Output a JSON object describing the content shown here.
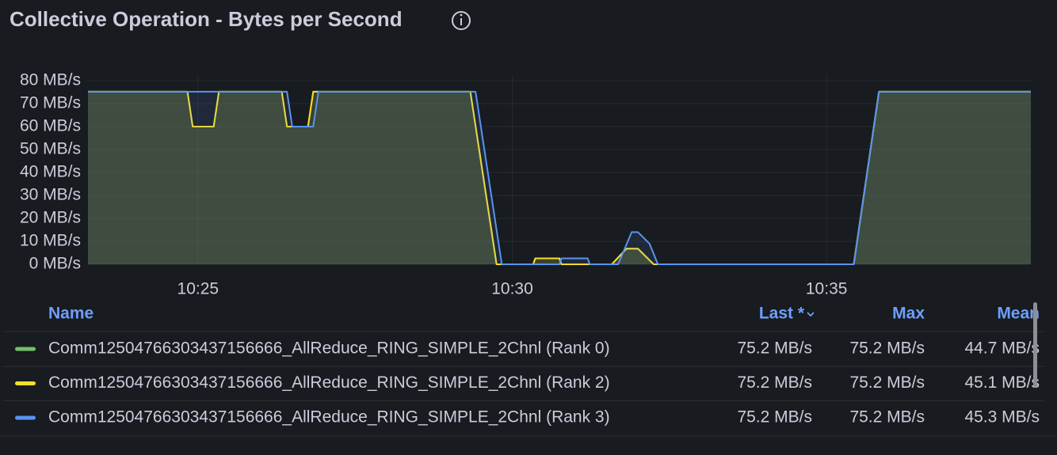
{
  "chart_data": {
    "type": "line",
    "title": "Collective Operation - Bytes per Second",
    "x": [
      "10:23:15",
      "10:24:50",
      "10:24:55",
      "10:25:15",
      "10:25:20",
      "10:26:20",
      "10:26:25",
      "10:26:30",
      "10:26:45",
      "10:26:50",
      "10:26:55",
      "10:29:20",
      "10:29:25",
      "10:29:45",
      "10:29:50",
      "10:30:20",
      "10:30:22",
      "10:30:45",
      "10:30:47",
      "10:31:12",
      "10:31:14",
      "10:31:35",
      "10:31:41",
      "10:31:49",
      "10:31:54",
      "10:32:00",
      "10:32:11",
      "10:32:15",
      "10:32:19",
      "10:35:26",
      "10:35:50",
      "10:38:15"
    ],
    "series": [
      {
        "name": "Comm12504766303437156666_AllReduce_RING_SIMPLE_2Chnl (Rank 0)",
        "color": "#73bf69",
        "values": [
          75.2,
          75.2,
          60,
          60,
          75.2,
          75.2,
          60,
          60,
          60,
          75.2,
          75.2,
          75.2,
          60.2,
          0,
          0,
          0,
          2.6,
          2.6,
          0,
          0,
          0,
          0,
          2.9,
          6.8,
          6.8,
          6.8,
          1.8,
          0,
          0,
          0,
          75.2,
          75.2
        ]
      },
      {
        "name": "Comm12504766303437156666_AllReduce_RING_SIMPLE_2Chnl (Rank 2)",
        "color": "#fade2a",
        "values": [
          75.2,
          75.2,
          60,
          60,
          75.2,
          75.2,
          60,
          60,
          60,
          75.2,
          75.2,
          75.2,
          60.2,
          0,
          0,
          0,
          2.6,
          2.6,
          0,
          0,
          0,
          0,
          2.9,
          6.8,
          6.8,
          6.8,
          1.8,
          0,
          0,
          0,
          75.2,
          75.2
        ]
      },
      {
        "name": "Comm12504766303437156666_AllReduce_RING_SIMPLE_2Chnl (Rank 3)",
        "color": "#5794f2",
        "values": [
          75.2,
          75.2,
          75.2,
          75.2,
          75.2,
          75.2,
          75.2,
          60,
          60,
          60,
          75.2,
          75.2,
          75.2,
          15,
          0,
          0,
          0,
          0,
          2.6,
          2.6,
          0,
          0,
          0,
          8.6,
          14,
          14,
          9,
          4.5,
          0,
          0,
          75.2,
          75.2
        ]
      }
    ],
    "xlim": [
      "10:23:15",
      "10:38:15"
    ],
    "xticks": [
      "10:25",
      "10:30",
      "10:35"
    ],
    "ylim": [
      0,
      80
    ],
    "yticks": [
      {
        "value": 0,
        "label": "0 MB/s"
      },
      {
        "value": 10,
        "label": "10 MB/s"
      },
      {
        "value": 20,
        "label": "20 MB/s"
      },
      {
        "value": 30,
        "label": "30 MB/s"
      },
      {
        "value": 40,
        "label": "40 MB/s"
      },
      {
        "value": 50,
        "label": "50 MB/s"
      },
      {
        "value": 60,
        "label": "60 MB/s"
      },
      {
        "value": 70,
        "label": "70 MB/s"
      },
      {
        "value": 80,
        "label": "80 MB/s"
      }
    ],
    "grid": true,
    "legend": {
      "columns": [
        "Name",
        "Last *",
        "Max",
        "Mean"
      ],
      "rows": [
        [
          "75.2 MB/s",
          "75.2 MB/s",
          "44.7 MB/s"
        ],
        [
          "75.2 MB/s",
          "75.2 MB/s",
          "45.1 MB/s"
        ],
        [
          "75.2 MB/s",
          "75.2 MB/s",
          "45.3 MB/s"
        ]
      ]
    }
  }
}
